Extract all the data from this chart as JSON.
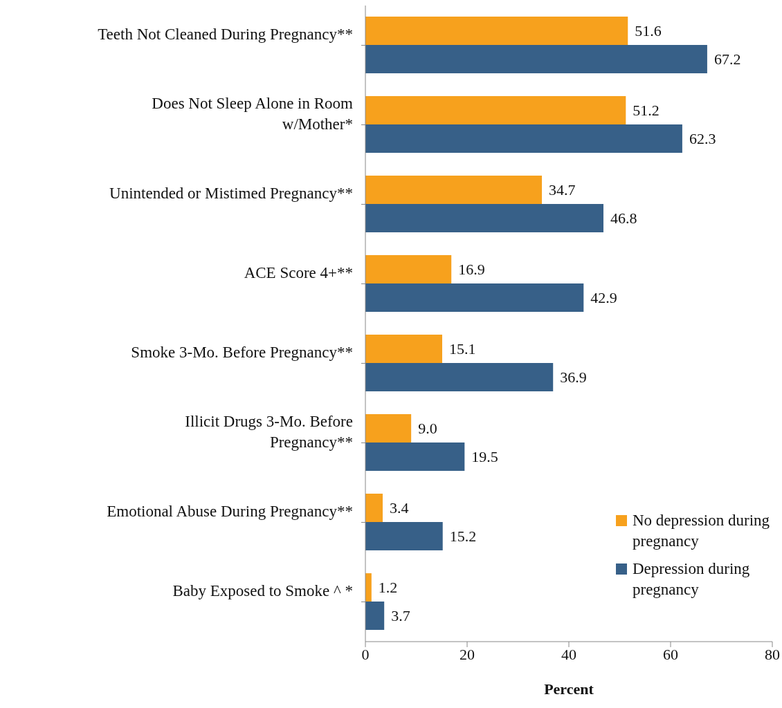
{
  "chart_data": {
    "type": "bar",
    "orientation": "horizontal",
    "xlabel": "Percent",
    "categories": [
      "Teeth Not Cleaned During Pregnancy**",
      "Does Not Sleep Alone in Room w/Mother*",
      "Unintended or Mistimed Pregnancy**",
      "ACE Score 4+**",
      "Smoke 3-Mo. Before Pregnancy**",
      "Illicit Drugs 3-Mo. Before Pregnancy**",
      "Emotional Abuse During Pregnancy**",
      "Baby Exposed to Smoke ^ *"
    ],
    "series": [
      {
        "name": "No depression during pregnancy",
        "color": "#f7a11d",
        "values": [
          51.6,
          51.2,
          34.7,
          16.9,
          15.1,
          9.0,
          3.4,
          1.2
        ],
        "value_labels": [
          "51.6",
          "51.2",
          "34.7",
          "16.9",
          "15.1",
          "9.0",
          "3.4",
          "1.2"
        ]
      },
      {
        "name": "Depression during pregnancy",
        "color": "#376088",
        "values": [
          67.2,
          62.3,
          46.8,
          42.9,
          36.9,
          19.5,
          15.2,
          3.7
        ],
        "value_labels": [
          "67.2",
          "62.3",
          "46.8",
          "42.9",
          "36.9",
          "19.5",
          "15.2",
          "3.7"
        ]
      }
    ],
    "xlim": [
      0,
      80
    ],
    "xticks": [
      0,
      20,
      40,
      60,
      80
    ],
    "grid": false,
    "legend": "bottom right"
  }
}
